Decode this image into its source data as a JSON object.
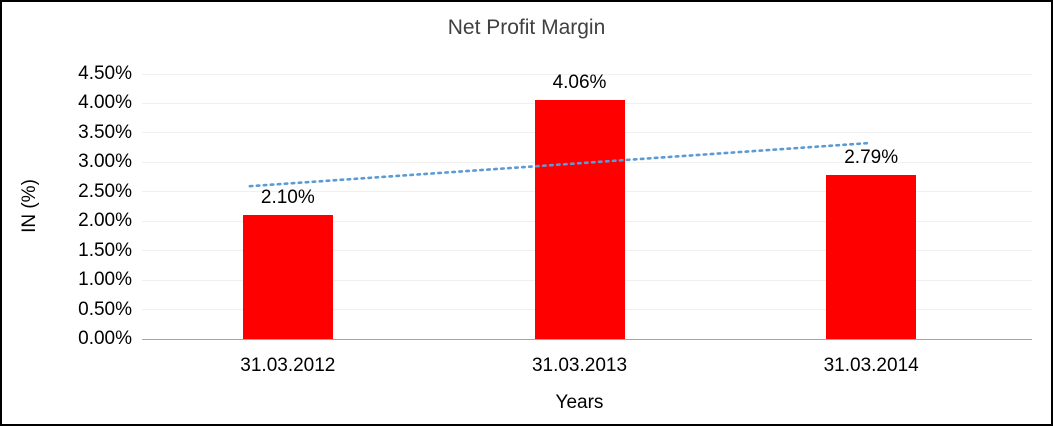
{
  "chart_data": {
    "type": "bar",
    "title": "Net Profit Margin",
    "xlabel": "Years",
    "ylabel": "IN (%)",
    "categories": [
      "31.03.2012",
      "31.03.2013",
      "31.03.2014"
    ],
    "values": [
      2.1,
      4.06,
      2.79
    ],
    "data_labels": [
      "2.10%",
      "4.06%",
      "2.79%"
    ],
    "ylim": [
      0,
      4.5
    ],
    "ytick_step": 0.5,
    "ytick_labels": [
      "0.00%",
      "0.50%",
      "1.00%",
      "1.50%",
      "2.00%",
      "2.50%",
      "3.00%",
      "3.50%",
      "4.00%",
      "4.50%"
    ],
    "grid": "horizontal-faint",
    "legend_position": "none",
    "bar_color": "#FF0000",
    "trendline": {
      "type": "linear",
      "style": "dotted",
      "color": "#5B9BD5",
      "start_value": 2.64,
      "end_value": 3.33
    }
  }
}
